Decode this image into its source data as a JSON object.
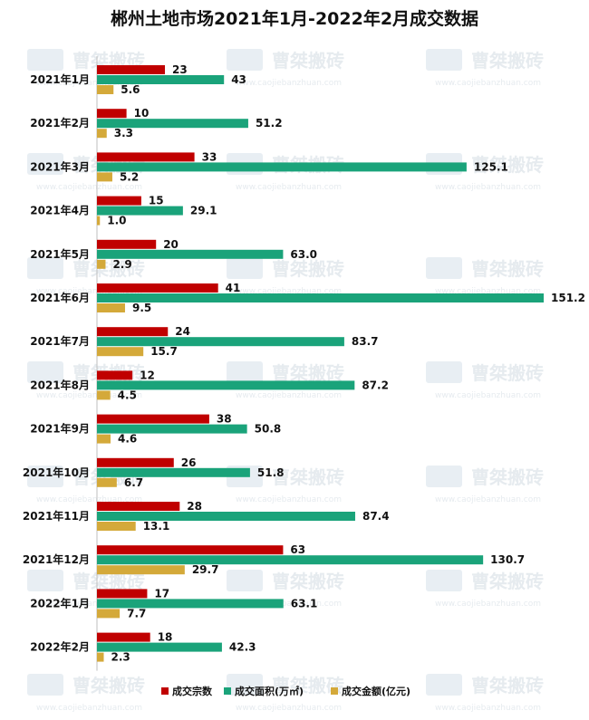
{
  "chart_data": {
    "type": "bar",
    "orientation": "horizontal",
    "title": "郴州土地市场2021年1月-2022年2月成交数据",
    "categories": [
      "2021年1月",
      "2021年2月",
      "2021年3月",
      "2021年4月",
      "2021年5月",
      "2021年6月",
      "2021年7月",
      "2021年8月",
      "2021年9月",
      "2021年10月",
      "2021年11月",
      "2021年12月",
      "2022年1月",
      "2022年2月"
    ],
    "series": [
      {
        "name": "成交宗数",
        "color": "#c00000",
        "values": [
          23,
          10,
          33,
          15,
          20,
          41,
          24,
          12,
          38,
          26,
          28,
          63,
          17,
          18
        ]
      },
      {
        "name": "成交面积(万㎡)",
        "color": "#1aa37a",
        "values": [
          43,
          51.2,
          125.1,
          29.1,
          63.0,
          151.2,
          83.7,
          87.2,
          50.8,
          51.8,
          87.4,
          130.7,
          63.1,
          42.3
        ]
      },
      {
        "name": "成交金额(亿元)",
        "color": "#d4a93a",
        "values": [
          5.6,
          3.3,
          5.2,
          1.0,
          2.9,
          9.5,
          15.7,
          4.5,
          4.6,
          6.7,
          13.1,
          29.7,
          7.7,
          2.3
        ]
      }
    ],
    "value_labels": [
      [
        "23",
        "10",
        "33",
        "15",
        "20",
        "41",
        "24",
        "12",
        "38",
        "26",
        "28",
        "63",
        "17",
        "18"
      ],
      [
        "43",
        "51.2",
        "125.1",
        "29.1",
        "63.0",
        "151.2",
        "83.7",
        "87.2",
        "50.8",
        "51.8",
        "87.4",
        "130.7",
        "63.1",
        "42.3"
      ],
      [
        "5.6",
        "3.3",
        "5.2",
        "1.0",
        "2.9",
        "9.5",
        "15.7",
        "4.5",
        "4.6",
        "6.7",
        "13.1",
        "29.7",
        "7.7",
        "2.3"
      ]
    ],
    "xlim": [
      0,
      151.2
    ],
    "grid": false,
    "legend_position": "bottom",
    "watermark": {
      "text": "曹桀搬砖",
      "url": "www.caojiebanzhuan.com"
    }
  }
}
